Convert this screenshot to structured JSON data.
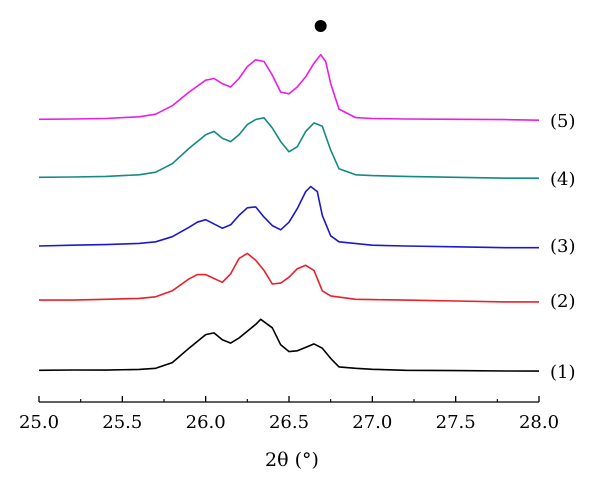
{
  "chart_data": {
    "type": "line",
    "xlabel": "2θ (°)",
    "xlim": [
      25.0,
      28.0
    ],
    "x_ticks": [
      "25.0",
      "25.5",
      "26.0",
      "26.5",
      "27.0",
      "27.5",
      "28.0"
    ],
    "y_axis_visible": false,
    "grid": false,
    "legend": "labels at right end of each trace",
    "marker_annotation": {
      "symbol": "●",
      "x": 26.69,
      "description": "filled circle above peak of trace (5)"
    },
    "series": [
      {
        "name": "(1)",
        "color": "#000000",
        "points": [
          [
            25.0,
            0.1
          ],
          [
            25.2,
            0.12
          ],
          [
            25.4,
            0.11
          ],
          [
            25.6,
            0.15
          ],
          [
            25.7,
            0.22
          ],
          [
            25.8,
            0.55
          ],
          [
            25.9,
            1.4
          ],
          [
            26.0,
            2.2
          ],
          [
            26.05,
            2.3
          ],
          [
            26.1,
            1.9
          ],
          [
            26.15,
            1.7
          ],
          [
            26.2,
            2.0
          ],
          [
            26.25,
            2.4
          ],
          [
            26.3,
            2.8
          ],
          [
            26.33,
            3.1
          ],
          [
            26.4,
            2.6
          ],
          [
            26.45,
            1.6
          ],
          [
            26.5,
            1.2
          ],
          [
            26.55,
            1.25
          ],
          [
            26.6,
            1.45
          ],
          [
            26.65,
            1.65
          ],
          [
            26.7,
            1.4
          ],
          [
            26.75,
            0.8
          ],
          [
            26.8,
            0.3
          ],
          [
            26.9,
            0.22
          ],
          [
            27.0,
            0.16
          ],
          [
            27.2,
            0.1
          ],
          [
            27.5,
            0.08
          ],
          [
            27.8,
            0.06
          ],
          [
            28.0,
            0.05
          ]
        ]
      },
      {
        "name": "(2)",
        "color": "#e8202a",
        "points": [
          [
            25.0,
            0.05
          ],
          [
            25.2,
            0.05
          ],
          [
            25.4,
            0.1
          ],
          [
            25.6,
            0.15
          ],
          [
            25.7,
            0.25
          ],
          [
            25.8,
            0.6
          ],
          [
            25.9,
            1.3
          ],
          [
            25.95,
            1.55
          ],
          [
            26.0,
            1.55
          ],
          [
            26.1,
            1.1
          ],
          [
            26.15,
            1.6
          ],
          [
            26.2,
            2.5
          ],
          [
            26.25,
            2.8
          ],
          [
            26.3,
            2.4
          ],
          [
            26.35,
            1.8
          ],
          [
            26.4,
            1.0
          ],
          [
            26.45,
            1.05
          ],
          [
            26.5,
            1.4
          ],
          [
            26.55,
            1.9
          ],
          [
            26.6,
            2.1
          ],
          [
            26.65,
            1.8
          ],
          [
            26.7,
            0.6
          ],
          [
            26.75,
            0.3
          ],
          [
            26.9,
            0.1
          ],
          [
            27.0,
            0.08
          ],
          [
            27.2,
            0.05
          ],
          [
            27.5,
            0.0
          ],
          [
            27.8,
            -0.05
          ],
          [
            28.0,
            -0.05
          ]
        ]
      },
      {
        "name": "(3)",
        "color": "#1a1acc",
        "points": [
          [
            25.0,
            0.0
          ],
          [
            25.2,
            0.05
          ],
          [
            25.4,
            0.08
          ],
          [
            25.6,
            0.15
          ],
          [
            25.7,
            0.25
          ],
          [
            25.8,
            0.55
          ],
          [
            25.9,
            1.1
          ],
          [
            25.95,
            1.4
          ],
          [
            26.0,
            1.55
          ],
          [
            26.1,
            1.05
          ],
          [
            26.15,
            1.25
          ],
          [
            26.2,
            1.8
          ],
          [
            26.25,
            2.25
          ],
          [
            26.3,
            2.3
          ],
          [
            26.35,
            1.7
          ],
          [
            26.4,
            1.2
          ],
          [
            26.45,
            0.95
          ],
          [
            26.5,
            1.4
          ],
          [
            26.55,
            2.2
          ],
          [
            26.6,
            3.2
          ],
          [
            26.63,
            3.5
          ],
          [
            26.67,
            3.2
          ],
          [
            26.7,
            1.8
          ],
          [
            26.75,
            0.6
          ],
          [
            26.8,
            0.25
          ],
          [
            27.0,
            0.05
          ],
          [
            27.2,
            0.0
          ],
          [
            27.5,
            -0.05
          ],
          [
            27.8,
            -0.1
          ],
          [
            28.0,
            -0.1
          ]
        ]
      },
      {
        "name": "(4)",
        "color": "#138a85",
        "points": [
          [
            25.0,
            0.1
          ],
          [
            25.2,
            0.12
          ],
          [
            25.4,
            0.15
          ],
          [
            25.6,
            0.25
          ],
          [
            25.7,
            0.4
          ],
          [
            25.8,
            0.9
          ],
          [
            25.9,
            1.8
          ],
          [
            26.0,
            2.6
          ],
          [
            26.05,
            2.8
          ],
          [
            26.1,
            2.4
          ],
          [
            26.15,
            2.2
          ],
          [
            26.2,
            2.6
          ],
          [
            26.25,
            3.2
          ],
          [
            26.3,
            3.5
          ],
          [
            26.35,
            3.6
          ],
          [
            26.4,
            3.0
          ],
          [
            26.45,
            2.2
          ],
          [
            26.5,
            1.6
          ],
          [
            26.55,
            1.9
          ],
          [
            26.6,
            2.8
          ],
          [
            26.65,
            3.3
          ],
          [
            26.7,
            3.1
          ],
          [
            26.75,
            1.7
          ],
          [
            26.8,
            0.6
          ],
          [
            26.9,
            0.25
          ],
          [
            27.0,
            0.2
          ],
          [
            27.2,
            0.15
          ],
          [
            27.5,
            0.1
          ],
          [
            27.8,
            0.05
          ],
          [
            28.0,
            0.05
          ]
        ]
      },
      {
        "name": "(5)",
        "color": "#e81ee8",
        "points": [
          [
            25.0,
            0.1
          ],
          [
            25.2,
            0.12
          ],
          [
            25.4,
            0.15
          ],
          [
            25.6,
            0.25
          ],
          [
            25.7,
            0.4
          ],
          [
            25.8,
            0.9
          ],
          [
            25.9,
            1.7
          ],
          [
            26.0,
            2.4
          ],
          [
            26.05,
            2.5
          ],
          [
            26.1,
            2.2
          ],
          [
            26.15,
            2.0
          ],
          [
            26.2,
            2.5
          ],
          [
            26.25,
            3.2
          ],
          [
            26.3,
            3.6
          ],
          [
            26.35,
            3.5
          ],
          [
            26.4,
            2.7
          ],
          [
            26.45,
            1.7
          ],
          [
            26.5,
            1.6
          ],
          [
            26.55,
            2.0
          ],
          [
            26.6,
            2.6
          ],
          [
            26.65,
            3.4
          ],
          [
            26.69,
            3.9
          ],
          [
            26.72,
            3.5
          ],
          [
            26.75,
            2.2
          ],
          [
            26.8,
            0.7
          ],
          [
            26.9,
            0.2
          ],
          [
            27.0,
            0.15
          ],
          [
            27.2,
            0.12
          ],
          [
            27.5,
            0.1
          ],
          [
            27.8,
            0.08
          ],
          [
            28.0,
            0.05
          ]
        ]
      }
    ]
  }
}
